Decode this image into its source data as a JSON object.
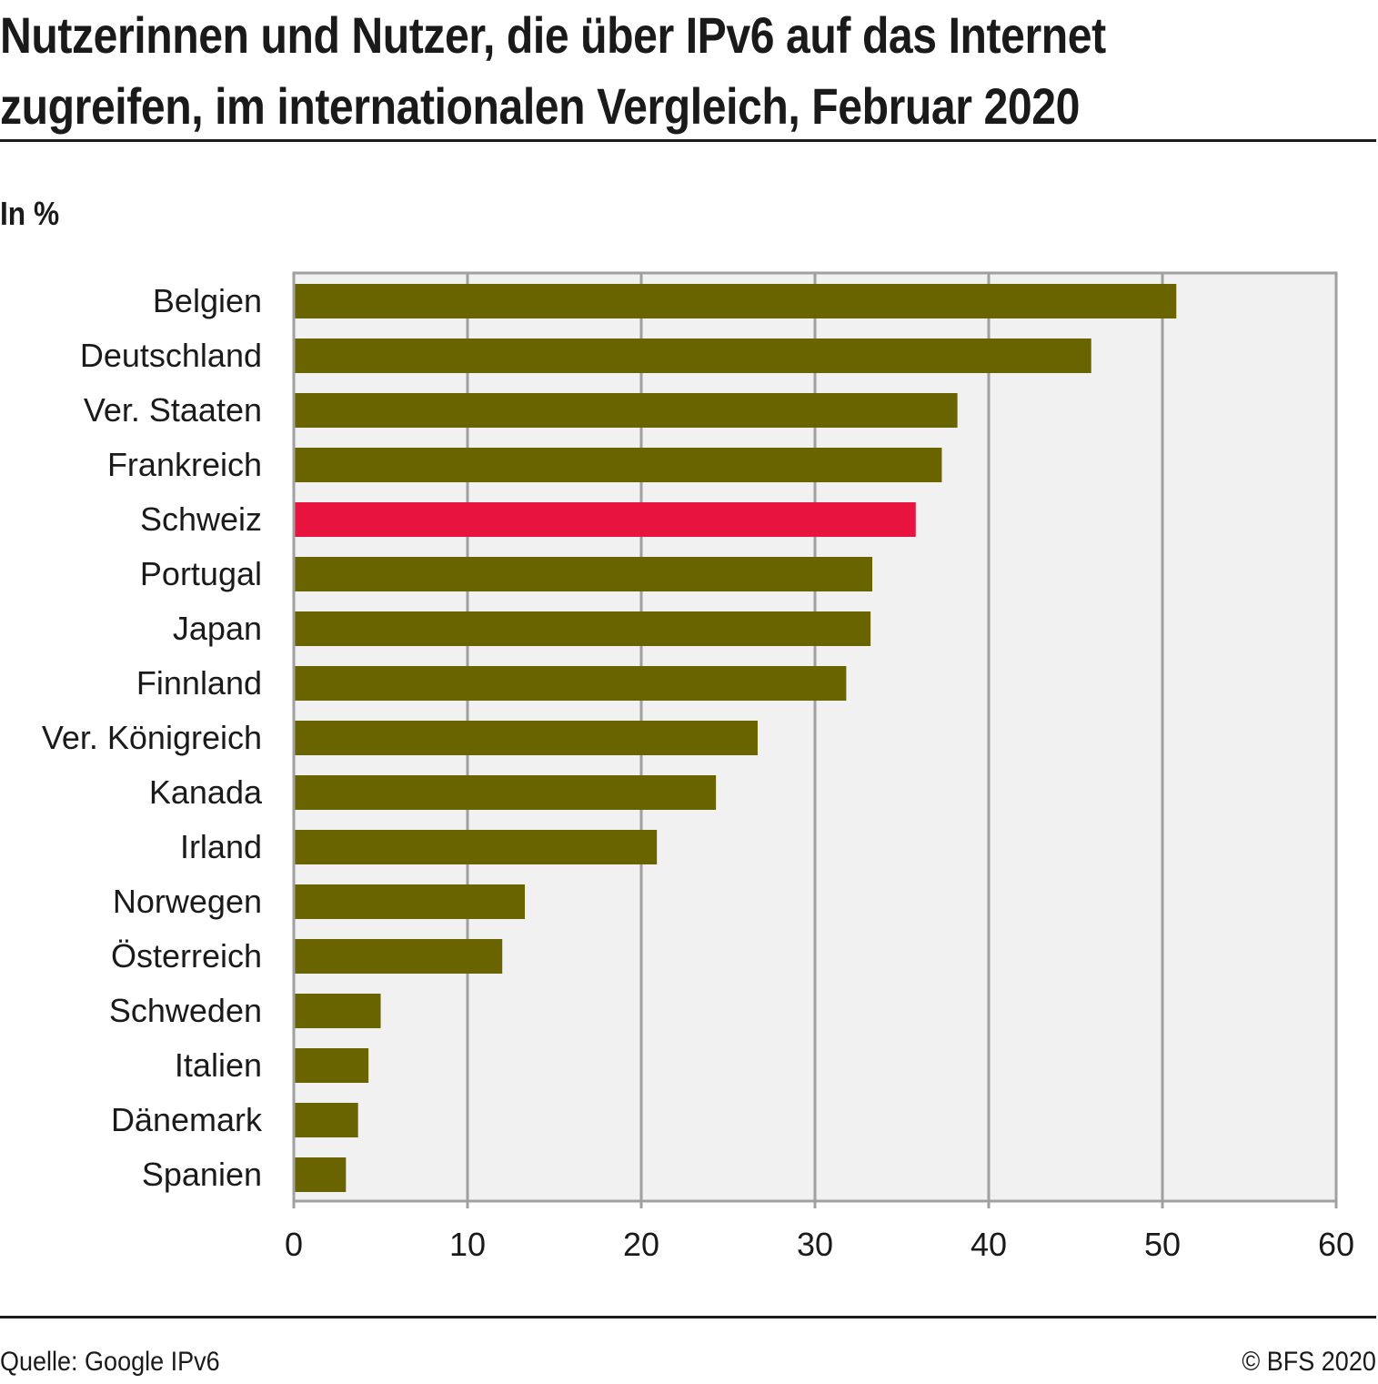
{
  "header": {
    "title_line1": "Nutzerinnen und Nutzer, die über IPv6 auf das Internet",
    "title_line2": "zugreifen, im internationalen Vergleich, Februar 2020",
    "unit_label": "In %"
  },
  "footer": {
    "source": "Quelle: Google IPv6",
    "copyright": "© BFS 2020"
  },
  "colors": {
    "bar_default": "#6a6400",
    "bar_highlight": "#e8133f",
    "plot_background": "#f1f1f1",
    "grid": "#a0a0a0"
  },
  "chart_data": {
    "type": "bar",
    "orientation": "horizontal",
    "title": "Nutzerinnen und Nutzer, die über IPv6 auf das Internet zugreifen, im internationalen Vergleich, Februar 2020",
    "xlabel": "",
    "ylabel": "In %",
    "xlim": [
      0,
      60
    ],
    "xticks": [
      0,
      10,
      20,
      30,
      40,
      50,
      60
    ],
    "grid": true,
    "highlight": "Schweiz",
    "categories": [
      "Belgien",
      "Deutschland",
      "Ver. Staaten",
      "Frankreich",
      "Schweiz",
      "Portugal",
      "Japan",
      "Finnland",
      "Ver. Königreich",
      "Kanada",
      "Irland",
      "Norwegen",
      "Österreich",
      "Schweden",
      "Italien",
      "Dänemark",
      "Spanien"
    ],
    "values": [
      50.8,
      45.9,
      38.2,
      37.3,
      35.8,
      33.3,
      33.2,
      31.8,
      26.7,
      24.3,
      20.9,
      13.3,
      12.0,
      5.0,
      4.3,
      3.7,
      3.0
    ]
  }
}
